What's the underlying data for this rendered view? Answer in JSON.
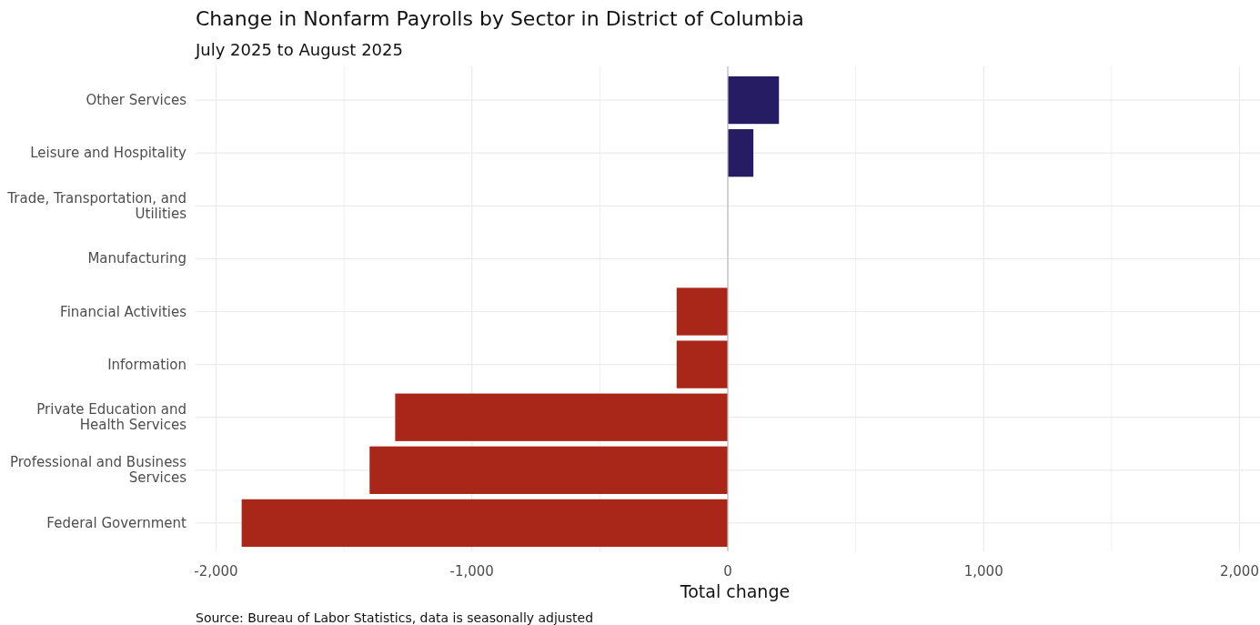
{
  "chart_data": {
    "type": "bar",
    "orientation": "horizontal",
    "title": "Change in Nonfarm Payrolls by Sector in District of Columbia",
    "subtitle": "July 2025 to August 2025",
    "xlabel": "Total change",
    "categories": [
      "Other Services",
      "Leisure and Hospitality",
      "Trade, Transportation, and Utilities",
      "Manufacturing",
      "Financial Activities",
      "Information",
      "Private Education and Health Services",
      "Professional and Business Services",
      "Federal Government"
    ],
    "values": [
      200,
      100,
      0,
      0,
      -200,
      -200,
      -1300,
      -1400,
      -1900
    ],
    "colors": [
      "#261c64",
      "#261c64",
      "#261c64",
      "#261c64",
      "#a92718",
      "#a92718",
      "#a92718",
      "#a92718",
      "#a92718"
    ],
    "xlim": [
      -2080,
      2080
    ],
    "xticks": [
      {
        "value": -2000,
        "label": "-2,000"
      },
      {
        "value": -1500,
        "label": null
      },
      {
        "value": -1000,
        "label": "-1,000"
      },
      {
        "value": -500,
        "label": null
      },
      0,
      {
        "value": 500,
        "label": null
      },
      {
        "value": 1000,
        "label": "1,000"
      },
      {
        "value": 1500,
        "label": null
      },
      {
        "value": 2000,
        "label": "2,000"
      }
    ],
    "ref_lines": [
      {
        "axis": "x",
        "value": 0,
        "color": "#bbbbbb"
      }
    ],
    "grid": true,
    "annotations": [
      "Source: Bureau of Labor Statistics, data is seasonally adjusted"
    ]
  }
}
